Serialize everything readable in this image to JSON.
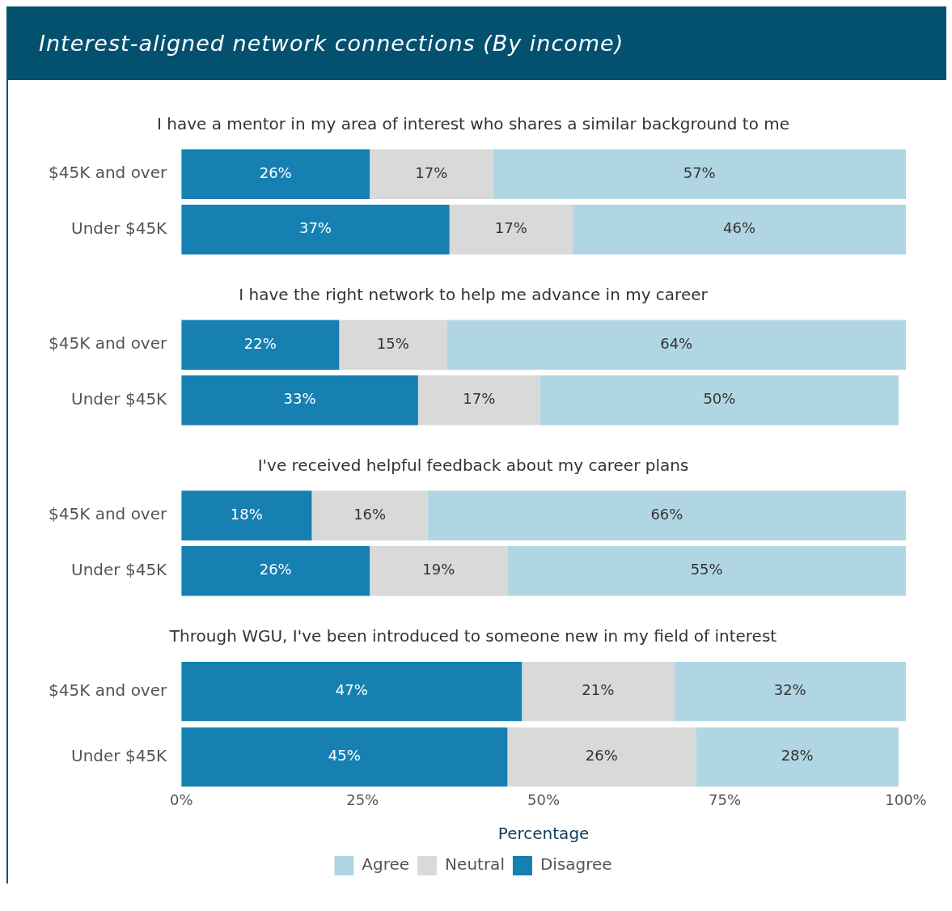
{
  "chart_data": [
    {
      "type": "bar",
      "title": "Interest-aligned network connections (By income)",
      "subtitle": "I have a mentor in my area of interest who shares a similar background to me",
      "orientation": "horizontal",
      "stacked": true,
      "categories": [
        "$45K and over",
        "Under $45K"
      ],
      "xlim": [
        0,
        100
      ],
      "tick_labels": "y",
      "series": [
        {
          "color": "#1580b1",
          "values": [
            26,
            37
          ],
          "value_labels": [
            "26%",
            "37%"
          ]
        },
        {
          "color": "#d9d9d9",
          "values": [
            17,
            17
          ],
          "value_labels": [
            "17%",
            "17%"
          ]
        },
        {
          "color": "#b1d6e3",
          "values": [
            57,
            46
          ],
          "value_labels": [
            "57%",
            "46%"
          ]
        }
      ]
    },
    {
      "type": "bar",
      "subtitle": "I have the right network to help me advance in my career",
      "orientation": "horizontal",
      "stacked": true,
      "categories": [
        "$45K and over",
        "Under $45K"
      ],
      "xlim": [
        0,
        101
      ],
      "tick_labels": "y",
      "series": [
        {
          "color": "#1580b1",
          "values": [
            22,
            33
          ],
          "value_labels": [
            "22%",
            "33%"
          ]
        },
        {
          "color": "#d9d9d9",
          "values": [
            15,
            17
          ],
          "value_labels": [
            "15%",
            "17%"
          ]
        },
        {
          "color": "#b1d6e3",
          "values": [
            64,
            50
          ],
          "value_labels": [
            "64%",
            "50%"
          ]
        }
      ]
    },
    {
      "type": "bar",
      "subtitle": "I've received helpful feedback about my career plans",
      "orientation": "horizontal",
      "stacked": true,
      "categories": [
        "$45K and over",
        "Under $45K"
      ],
      "xlim": [
        0,
        100
      ],
      "tick_labels": "y",
      "series": [
        {
          "color": "#1580b1",
          "values": [
            18,
            26
          ],
          "value_labels": [
            "18%",
            "26%"
          ]
        },
        {
          "color": "#d9d9d9",
          "values": [
            16,
            19
          ],
          "value_labels": [
            "16%",
            "19%"
          ]
        },
        {
          "color": "#b1d6e3",
          "values": [
            66,
            55
          ],
          "value_labels": [
            "66%",
            "55%"
          ]
        }
      ]
    },
    {
      "type": "bar",
      "subtitle": "Through WGU, I've been introduced to someone new in my field of interest",
      "orientation": "horizontal",
      "stacked": true,
      "categories": [
        "$45K and over",
        "Under $45K"
      ],
      "xlim": [
        0,
        100
      ],
      "xticks": [
        {
          "value": 0,
          "label": "0%"
        },
        {
          "value": 25,
          "label": "25%"
        },
        {
          "value": 50,
          "label": "50%"
        },
        {
          "value": 75,
          "label": "75%"
        },
        {
          "value": 100,
          "label": "100%"
        }
      ],
      "xlabel": "Percentage",
      "legend": "bottom",
      "series": [
        {
          "name": "Disagree",
          "color": "#1580b1",
          "values": [
            47,
            45
          ],
          "value_labels": [
            "47%",
            "45%"
          ]
        },
        {
          "name": "Neutral",
          "color": "#d9d9d9",
          "values": [
            21,
            26
          ],
          "value_labels": [
            "21%",
            "26%"
          ]
        },
        {
          "name": "Agree",
          "color": "#b1d6e3",
          "values": [
            32,
            28
          ],
          "value_labels": [
            "32%",
            "28%"
          ]
        }
      ]
    }
  ]
}
